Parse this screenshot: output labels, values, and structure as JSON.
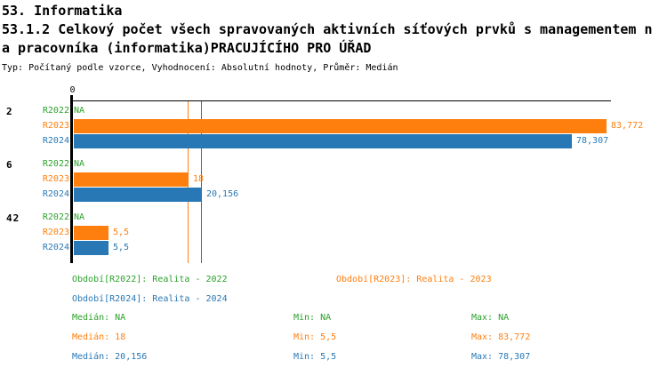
{
  "header": {
    "line1": "53. Informatika",
    "line2": "53.1.2 Celkový počet všech spravovaných aktivních síťových prvků s managementem n",
    "line3": "a pracovníka (informatika)PRACUJÍCÍHO PRO ÚŘAD",
    "subtitle": "Typ: Počítaný podle vzorce, Vyhodnocení: Absolutní hodnoty, Průměr: Medián"
  },
  "colors": {
    "green": "#2CA02C",
    "orange": "#FF7F0E",
    "blue": "#2878B5",
    "axis": "#000000"
  },
  "chart_data": {
    "type": "bar",
    "orientation": "horizontal",
    "value_axis": {
      "zero_label": "0",
      "min": 0,
      "max": 84.6,
      "gridlines": false
    },
    "series_names": [
      "R2022",
      "R2023",
      "R2024"
    ],
    "groups": [
      {
        "label": "2",
        "bars": [
          {
            "series": "R2022",
            "color_key": "green",
            "value": null,
            "display": "NA"
          },
          {
            "series": "R2023",
            "color_key": "orange",
            "value": 83.772,
            "display": "83,772"
          },
          {
            "series": "R2024",
            "color_key": "blue",
            "value": 78.307,
            "display": "78,307"
          }
        ]
      },
      {
        "label": "6",
        "bars": [
          {
            "series": "R2022",
            "color_key": "green",
            "value": null,
            "display": "NA"
          },
          {
            "series": "R2023",
            "color_key": "orange",
            "value": 18,
            "display": "18"
          },
          {
            "series": "R2024",
            "color_key": "blue",
            "value": 20.156,
            "display": "20,156"
          }
        ]
      },
      {
        "label": "42",
        "bars": [
          {
            "series": "R2022",
            "color_key": "green",
            "value": null,
            "display": "NA"
          },
          {
            "series": "R2023",
            "color_key": "orange",
            "value": 5.5,
            "display": "5,5"
          },
          {
            "series": "R2024",
            "color_key": "blue",
            "value": 5.5,
            "display": "5,5"
          }
        ]
      }
    ],
    "median_lines": [
      {
        "series": "R2023",
        "color_key": "orange",
        "value": 18
      },
      {
        "series": "R2024",
        "color_key": "blue",
        "value": 20.156
      }
    ],
    "summary": [
      {
        "series": "R2022",
        "median": "NA",
        "min": "NA",
        "max": "NA"
      },
      {
        "series": "R2023",
        "median": "18",
        "min": "5,5",
        "max": "83,772"
      },
      {
        "series": "R2024",
        "median": "20,156",
        "min": "5,5",
        "max": "78,307"
      }
    ]
  },
  "legend": {
    "items": [
      {
        "color_key": "green",
        "text": "Období[R2022]: Realita - 2022"
      },
      {
        "color_key": "orange",
        "text": "Období[R2023]: Realita - 2023"
      },
      {
        "color_key": "blue",
        "text": "Období[R2024]: Realita - 2024"
      }
    ]
  },
  "stats": {
    "rows": [
      {
        "color_key": "green",
        "median": "Medián: NA",
        "min": "Min: NA",
        "max": "Max: NA"
      },
      {
        "color_key": "orange",
        "median": "Medián: 18",
        "min": "Min: 5,5",
        "max": "Max: 83,772"
      },
      {
        "color_key": "blue",
        "median": "Medián: 20,156",
        "min": "Min: 5,5",
        "max": "Max: 78,307"
      }
    ]
  }
}
